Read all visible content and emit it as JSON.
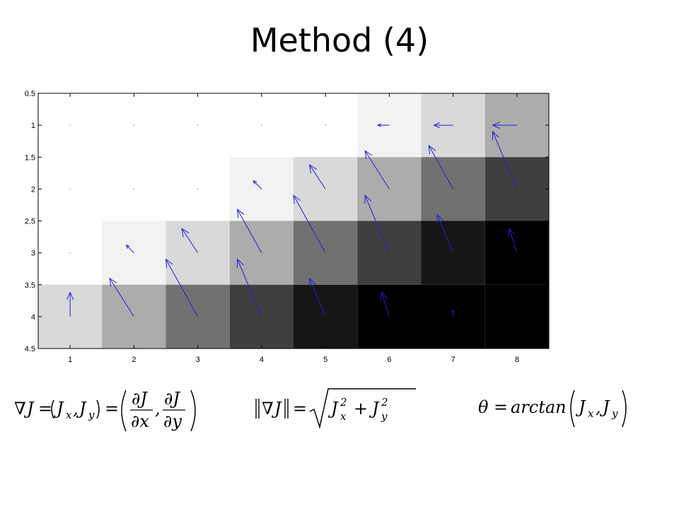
{
  "slide": {
    "title": "Method (4)"
  },
  "formulas": {
    "gradient": "∇J = (Jx, Jy) = (∂J/∂x, ∂J/∂y)",
    "magnitude": "‖∇J‖ = √(Jx² + Jy²)",
    "angle": "θ = arctan(Jx, Jy)"
  },
  "chart_data": {
    "type": "heatmap",
    "title": "",
    "xlabel": "",
    "ylabel": "",
    "x_ticks": [
      "1",
      "2",
      "3",
      "4",
      "5",
      "6",
      "7",
      "8"
    ],
    "y_ticks": [
      "0.5",
      "1",
      "1.5",
      "2",
      "2.5",
      "3",
      "3.5",
      "4",
      "4.5"
    ],
    "xlim": [
      0.5,
      8.5
    ],
    "ylim": [
      0.5,
      4.5
    ],
    "y_reversed": true,
    "grid": false,
    "colormap": "gray",
    "overlay": "quiver",
    "arrow_color": "#1f1fdc",
    "cells": [
      [
        "#ffffff",
        "#ffffff",
        "#ffffff",
        "#ffffff",
        "#ffffff",
        "#f2f2f2",
        "#d9d9d9",
        "#acacac"
      ],
      [
        "#ffffff",
        "#ffffff",
        "#ffffff",
        "#f2f2f2",
        "#d9d9d9",
        "#acacac",
        "#717171",
        "#3f3f3f"
      ],
      [
        "#ffffff",
        "#f2f2f2",
        "#d9d9d9",
        "#acacac",
        "#717171",
        "#3f3f3f",
        "#161616",
        "#000000"
      ],
      [
        "#d9d9d9",
        "#acacac",
        "#717171",
        "#3f3f3f",
        "#161616",
        "#000000",
        "#000000",
        "#000000"
      ]
    ],
    "arrows": [
      {
        "x": 1,
        "y": 1,
        "u": 0,
        "v": 0
      },
      {
        "x": 2,
        "y": 1,
        "u": 0,
        "v": 0
      },
      {
        "x": 3,
        "y": 1,
        "u": 0,
        "v": 0
      },
      {
        "x": 4,
        "y": 1,
        "u": 0,
        "v": 0
      },
      {
        "x": 5,
        "y": 1,
        "u": 0,
        "v": 0
      },
      {
        "x": 6,
        "y": 1,
        "u": -0.18,
        "v": 0
      },
      {
        "x": 7,
        "y": 1,
        "u": -0.3,
        "v": 0
      },
      {
        "x": 8,
        "y": 1,
        "u": -0.38,
        "v": 0
      },
      {
        "x": 1,
        "y": 2,
        "u": 0,
        "v": 0
      },
      {
        "x": 2,
        "y": 2,
        "u": 0,
        "v": 0
      },
      {
        "x": 3,
        "y": 2,
        "u": 0,
        "v": 0
      },
      {
        "x": 4,
        "y": 2,
        "u": -0.13,
        "v": -0.13
      },
      {
        "x": 5,
        "y": 2,
        "u": -0.25,
        "v": -0.38
      },
      {
        "x": 6,
        "y": 2,
        "u": -0.38,
        "v": -0.6
      },
      {
        "x": 7,
        "y": 2,
        "u": -0.38,
        "v": -0.68
      },
      {
        "x": 8,
        "y": 2,
        "u": -0.38,
        "v": -0.9
      },
      {
        "x": 1,
        "y": 3,
        "u": 0,
        "v": 0
      },
      {
        "x": 2,
        "y": 3,
        "u": -0.12,
        "v": -0.12
      },
      {
        "x": 3,
        "y": 3,
        "u": -0.25,
        "v": -0.38
      },
      {
        "x": 4,
        "y": 3,
        "u": -0.38,
        "v": -0.68
      },
      {
        "x": 5,
        "y": 3,
        "u": -0.5,
        "v": -0.9
      },
      {
        "x": 6,
        "y": 3,
        "u": -0.38,
        "v": -0.9
      },
      {
        "x": 7,
        "y": 3,
        "u": -0.25,
        "v": -0.6
      },
      {
        "x": 8,
        "y": 3,
        "u": -0.12,
        "v": -0.38
      },
      {
        "x": 1,
        "y": 4,
        "u": 0,
        "v": -0.38
      },
      {
        "x": 2,
        "y": 4,
        "u": -0.38,
        "v": -0.6
      },
      {
        "x": 3,
        "y": 4,
        "u": -0.5,
        "v": -0.9
      },
      {
        "x": 4,
        "y": 4,
        "u": -0.38,
        "v": -0.9
      },
      {
        "x": 5,
        "y": 4,
        "u": -0.25,
        "v": -0.6
      },
      {
        "x": 6,
        "y": 4,
        "u": -0.12,
        "v": -0.38
      },
      {
        "x": 7,
        "y": 4,
        "u": 0,
        "v": -0.1
      },
      {
        "x": 8,
        "y": 4,
        "u": 0,
        "v": 0
      }
    ]
  }
}
